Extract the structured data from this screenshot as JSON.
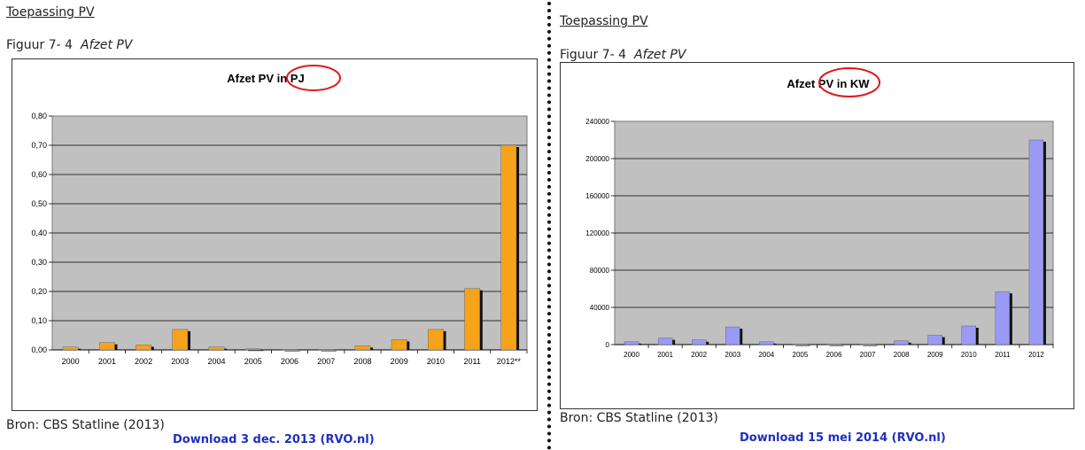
{
  "left": {
    "section_title": "Toepassing PV",
    "figuur_label": "Figuur 7- 4",
    "figuur_title": "Afzet PV",
    "source": "Bron: CBS Statline (2013)",
    "download": "Download 3 dec. 2013 (RVO.nl)"
  },
  "right": {
    "section_title": "Toepassing PV",
    "figuur_label": "Figuur 7- 4",
    "figuur_title": "Afzet PV",
    "source": "Bron: CBS Statline (2013)",
    "download": "Download 15 mei 2014 (RVO.nl)"
  },
  "chart_data": [
    {
      "type": "bar",
      "title": "Afzet PV in PJ",
      "title_parts": [
        "Afzet PV",
        "in PJ"
      ],
      "categories": [
        "2000",
        "2001",
        "2002",
        "2003",
        "2004",
        "2005",
        "2006",
        "2007",
        "2008",
        "2009",
        "2010",
        "2011",
        "2012**"
      ],
      "values": [
        0.01,
        0.025,
        0.017,
        0.07,
        0.01,
        0.004,
        0.001,
        0.001,
        0.014,
        0.035,
        0.07,
        0.21,
        0.7
      ],
      "ylim": [
        0,
        0.8
      ],
      "yticks": [
        "0,00",
        "0,10",
        "0,20",
        "0,30",
        "0,40",
        "0,50",
        "0,60",
        "0,70",
        "0,80"
      ],
      "xlabel": "",
      "ylabel": "",
      "grid": true,
      "colors": {
        "bar": "#f7a21b",
        "shadow": "#111111",
        "plot_bg": "#c0c0c0",
        "highlight": "#e0171b"
      }
    },
    {
      "type": "bar",
      "title": "Afzet PV in KW",
      "title_parts": [
        "Afzet PV",
        "in KW"
      ],
      "categories": [
        "2000",
        "2001",
        "2002",
        "2003",
        "2004",
        "2005",
        "2006",
        "2007",
        "2008",
        "2009",
        "2010",
        "2011",
        "2012"
      ],
      "values": [
        3000,
        7000,
        5000,
        19000,
        3000,
        500,
        300,
        300,
        4000,
        10000,
        20000,
        57000,
        220000
      ],
      "ylim": [
        0,
        240000
      ],
      "yticks": [
        "0",
        "40000",
        "80000",
        "120000",
        "160000",
        "200000",
        "240000"
      ],
      "xlabel": "",
      "ylabel": "",
      "grid": true,
      "colors": {
        "bar": "#9a9af5",
        "shadow": "#111111",
        "plot_bg": "#c0c0c0",
        "highlight": "#e0171b"
      }
    }
  ]
}
